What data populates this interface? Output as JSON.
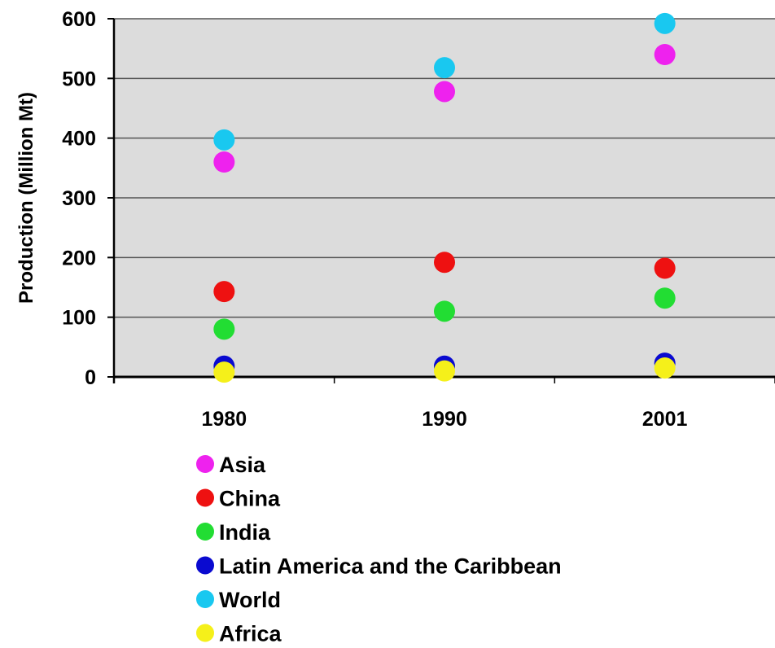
{
  "chart_data": {
    "type": "scatter",
    "title": "",
    "xlabel": "",
    "ylabel": "Production (Million Mt)",
    "ylim": [
      0,
      600
    ],
    "yticks": [
      0,
      100,
      200,
      300,
      400,
      500,
      600
    ],
    "categories": [
      "1980",
      "1990",
      "2001"
    ],
    "grid": "horizontal",
    "legend_position": "bottom",
    "series": [
      {
        "name": "Asia",
        "color": "#ee22ee",
        "values": [
          360,
          478,
          540
        ]
      },
      {
        "name": "China",
        "color": "#ee1111",
        "values": [
          143,
          192,
          182
        ]
      },
      {
        "name": "India",
        "color": "#22dd33",
        "values": [
          80,
          110,
          132
        ]
      },
      {
        "name": "Latin America and the Caribbean",
        "color": "#0a0ad0",
        "values": [
          18,
          18,
          23
        ]
      },
      {
        "name": "World",
        "color": "#19c8f0",
        "values": [
          397,
          518,
          592
        ]
      },
      {
        "name": "Africa",
        "color": "#f5f01a",
        "values": [
          8,
          10,
          15
        ]
      }
    ]
  }
}
